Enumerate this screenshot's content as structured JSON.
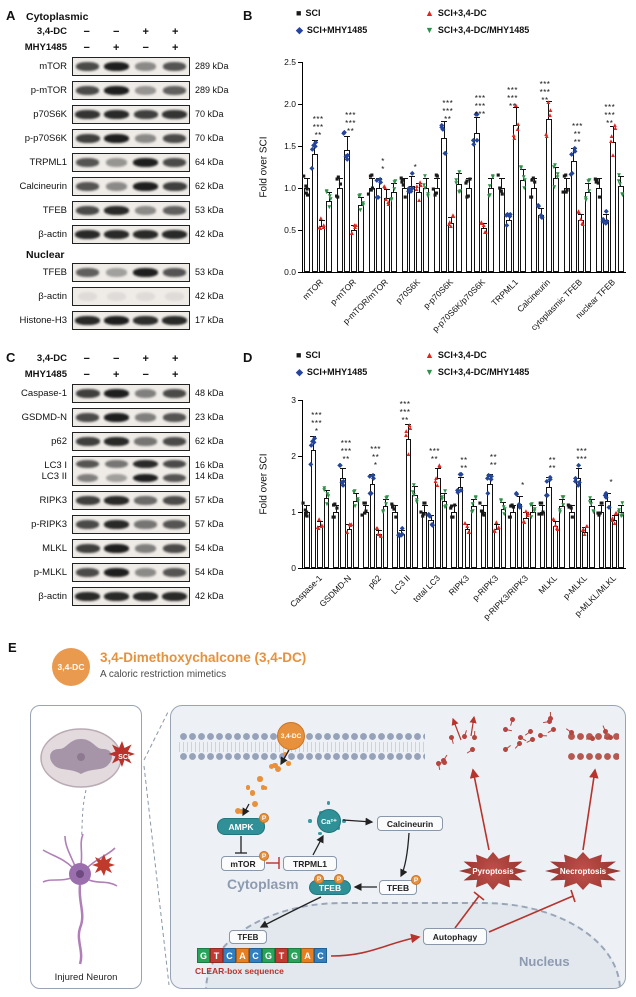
{
  "panelA": {
    "label": "A",
    "compartment_label": "Cytoplasmic",
    "treatments": [
      {
        "name": "3,4-DC",
        "signs": [
          "−",
          "−",
          "+",
          "+"
        ]
      },
      {
        "name": "MHY1485",
        "signs": [
          "−",
          "+",
          "−",
          "+"
        ]
      }
    ],
    "blots": [
      {
        "label": "mTOR",
        "kda": "289 kDa",
        "bands": [
          0.75,
          0.95,
          0.45,
          0.7
        ]
      },
      {
        "label": "p-mTOR",
        "kda": "289 kDa",
        "bands": [
          0.75,
          0.95,
          0.4,
          0.65
        ]
      },
      {
        "label": "p70S6K",
        "kda": "70 kDa",
        "bands": [
          0.85,
          0.9,
          0.8,
          0.85
        ]
      },
      {
        "label": "p-p70S6K",
        "kda": "70 kDa",
        "bands": [
          0.8,
          0.95,
          0.45,
          0.75
        ]
      },
      {
        "label": "TRPML1",
        "kda": "64 kDa",
        "bands": [
          0.7,
          0.4,
          0.95,
          0.75
        ]
      },
      {
        "label": "Calcineurin",
        "kda": "62 kDa",
        "bands": [
          0.7,
          0.45,
          0.95,
          0.8
        ]
      },
      {
        "label": "TFEB",
        "kda": "53 kDa",
        "bands": [
          0.75,
          0.9,
          0.45,
          0.65
        ]
      },
      {
        "label": "β-actin",
        "kda": "42 kDa",
        "bands": [
          0.9,
          0.9,
          0.9,
          0.9
        ]
      }
    ],
    "nuclear_label": "Nuclear",
    "nuclear_blots": [
      {
        "label": "TFEB",
        "kda": "53 kDa",
        "bands": [
          0.65,
          0.35,
          0.95,
          0.7
        ]
      },
      {
        "label": "β-actin",
        "kda": "42 kDa",
        "bands": [
          0.07,
          0.07,
          0.07,
          0.07
        ]
      },
      {
        "label": "Histone-H3",
        "kda": "17 kDa",
        "bands": [
          0.9,
          0.95,
          0.88,
          0.9
        ]
      }
    ]
  },
  "panelB": {
    "label": "B"
  },
  "panelC": {
    "label": "C",
    "treatments": [
      {
        "name": "3,4-DC",
        "signs": [
          "−",
          "−",
          "+",
          "+"
        ]
      },
      {
        "name": "MHY1485",
        "signs": [
          "−",
          "+",
          "−",
          "+"
        ]
      }
    ],
    "blots": [
      {
        "label": "Caspase-1",
        "kda": "48 kDa",
        "bands": [
          0.8,
          0.95,
          0.5,
          0.75
        ]
      },
      {
        "label": "GSDMD-N",
        "kda": "23 kDa",
        "bands": [
          0.75,
          0.95,
          0.5,
          0.7
        ]
      },
      {
        "label": "p62",
        "kda": "62 kDa",
        "bands": [
          0.8,
          0.9,
          0.55,
          0.75
        ]
      },
      {
        "label": "LC3 I",
        "label2": "LC3 II",
        "kda": "16 kDa",
        "kda2": "14 kDa",
        "bands": [
          0.7,
          0.55,
          0.9,
          0.75
        ],
        "bands2": [
          0.5,
          0.35,
          0.95,
          0.7
        ]
      },
      {
        "label": "RIPK3",
        "kda": "57 kDa",
        "bands": [
          0.8,
          0.9,
          0.6,
          0.75
        ]
      },
      {
        "label": "p-RIPK3",
        "kda": "57 kDa",
        "bands": [
          0.75,
          0.9,
          0.55,
          0.7
        ]
      },
      {
        "label": "MLKL",
        "kda": "54 kDa",
        "bands": [
          0.8,
          0.95,
          0.5,
          0.75
        ]
      },
      {
        "label": "p-MLKL",
        "kda": "54 kDa",
        "bands": [
          0.75,
          0.95,
          0.45,
          0.7
        ]
      },
      {
        "label": "β-actin",
        "kda": "42 kDa",
        "bands": [
          0.9,
          0.9,
          0.9,
          0.9
        ]
      }
    ]
  },
  "panelD": {
    "label": "D"
  },
  "chart_data": [
    {
      "id": "B",
      "type": "bar",
      "ylabel": "Fold over SCI",
      "ylim": [
        0,
        2.5
      ],
      "yticks": [
        0,
        0.5,
        1,
        1.5,
        2,
        2.5
      ],
      "ytick_labels": [
        "0.0",
        "0.5",
        "1.0",
        "1.5",
        "2.0",
        "2.5"
      ],
      "grid": false,
      "legend_position": "top",
      "categories": [
        "mTOR",
        "p-mTOR",
        "p-mTOR/mTOR",
        "p70S6K",
        "p-p70S6K",
        "p-p70S6K/p70S6K",
        "TRPML1",
        "Calcineurin",
        "cytoplasmic TFEB",
        "nuclear TFEB"
      ],
      "series": [
        {
          "name": "SCI",
          "color": "#1a1a1a",
          "marker": "■",
          "values": [
            1,
            1,
            1,
            1,
            1,
            1,
            1,
            1,
            1,
            1
          ]
        },
        {
          "name": "SCI+MHY1485",
          "color": "#24459a",
          "marker": "◆",
          "values": [
            1.4,
            1.45,
            1.0,
            1.02,
            1.6,
            1.65,
            0.62,
            0.68,
            1.32,
            0.62
          ]
        },
        {
          "name": "SCI+3,4-DC",
          "color": "#e02420",
          "marker": "▲",
          "values": [
            0.55,
            0.5,
            0.88,
            0.95,
            0.58,
            0.52,
            1.75,
            1.82,
            0.62,
            1.55
          ]
        },
        {
          "name": "SCI+3,4-DC/MHY1485",
          "color": "#2e9148",
          "marker": "▼",
          "values": [
            0.85,
            0.8,
            0.95,
            1.0,
            1.05,
            1.0,
            1.1,
            1.12,
            0.95,
            1.02
          ]
        }
      ],
      "legend": [
        {
          "label": "SCI",
          "marker": "■",
          "color": "#1a1a1a"
        },
        {
          "label": "SCI+3,4-DC",
          "marker": "▲",
          "color": "#e02420"
        },
        {
          "label": "SCI+MHY1485",
          "marker": "◆",
          "color": "#24459a"
        },
        {
          "label": "SCI+3,4-DC/MHY1485",
          "marker": "▼",
          "color": "#2e9148"
        }
      ],
      "significance": [
        [
          "**",
          "***",
          "***"
        ],
        [
          "**",
          "***",
          "***"
        ],
        [
          "*",
          "*"
        ],
        [
          "*"
        ],
        [
          "**",
          "***",
          "***"
        ],
        [
          "***",
          "***",
          "***"
        ],
        [
          "**",
          "***",
          "***"
        ],
        [
          "**",
          "***",
          "***"
        ],
        [
          "**",
          "**",
          "***"
        ],
        [
          "**",
          "***",
          "***"
        ]
      ]
    },
    {
      "id": "D",
      "type": "bar",
      "ylabel": "Fold over SCI",
      "ylim": [
        0,
        3
      ],
      "yticks": [
        0,
        1,
        2,
        3
      ],
      "ytick_labels": [
        "0",
        "1",
        "2",
        "3"
      ],
      "grid": false,
      "legend_position": "top",
      "categories": [
        "Caspase-1",
        "GSDMD-N",
        "p62",
        "LC3 II",
        "total LC3",
        "RIPK3",
        "p-RIPK3",
        "p-RIPK3/RIPK3",
        "MLKL",
        "p-MLKL",
        "p-MLKL/MLKL"
      ],
      "series": [
        {
          "name": "SCI",
          "color": "#1a1a1a",
          "marker": "■",
          "values": [
            1,
            1,
            1,
            1,
            1,
            1,
            1,
            1,
            1,
            1,
            1
          ]
        },
        {
          "name": "SCI+MHY1485",
          "color": "#24459a",
          "marker": "◆",
          "values": [
            2.1,
            1.6,
            1.5,
            0.6,
            0.85,
            1.45,
            1.5,
            1.15,
            1.45,
            1.6,
            1.2
          ]
        },
        {
          "name": "SCI+3,4-DC",
          "color": "#e02420",
          "marker": "▲",
          "values": [
            0.75,
            0.7,
            0.6,
            2.3,
            1.6,
            0.7,
            0.7,
            0.9,
            0.75,
            0.65,
            0.85
          ]
        },
        {
          "name": "SCI+3,4-DC/MHY1485",
          "color": "#2e9148",
          "marker": "▼",
          "values": [
            1.25,
            1.2,
            1.1,
            1.3,
            1.2,
            1.1,
            1.05,
            1.0,
            1.1,
            1.1,
            1.0
          ]
        }
      ],
      "legend": [
        {
          "label": "SCI",
          "marker": "■",
          "color": "#1a1a1a"
        },
        {
          "label": "SCI+3,4-DC",
          "marker": "▲",
          "color": "#e02420"
        },
        {
          "label": "SCI+MHY1485",
          "marker": "◆",
          "color": "#24459a"
        },
        {
          "label": "SCI+3,4-DC/MHY1485",
          "marker": "▼",
          "color": "#2e9148"
        }
      ],
      "significance": [
        [
          "*",
          "***",
          "***"
        ],
        [
          "**",
          "***",
          "***"
        ],
        [
          "*",
          "**",
          "***"
        ],
        [
          "**",
          "***",
          "***"
        ],
        [
          "**",
          "***"
        ],
        [
          "**",
          "**"
        ],
        [
          "**",
          "**"
        ],
        [
          "*"
        ],
        [
          "**",
          "**"
        ],
        [
          "***",
          "***"
        ],
        [
          "*"
        ]
      ]
    }
  ],
  "panelE": {
    "label": "E",
    "badge_text": "3,4-DC",
    "badge_color": "#ea9a4e",
    "title": "3,4-Dimethoxychalcone (3,4-DC)",
    "subtitle": "A caloric restriction mimetics",
    "left_panel": {
      "caption": "Injured Neuron",
      "sci_label": "SCI"
    },
    "diagram": {
      "dc": "3,4-DC",
      "ampk": "AMPK",
      "mtor": "mTOR",
      "trpml1": "TRPML1",
      "ca": "Ca²⁺",
      "calcineurin": "Calcineurin",
      "tfeb": "TFEB",
      "p": "P",
      "cytoplasm": "Cytoplasm",
      "nucleus": "Nucleus",
      "clear_box": "CLEAR-box sequence",
      "autophagy": "Autophagy",
      "pyroptosis": "Pyroptosis",
      "necroptosis": "Necroptosis",
      "dna_sequence": [
        "G",
        "T",
        "C",
        "A",
        "C",
        "G",
        "T",
        "G",
        "A",
        "C"
      ],
      "dna_colors": {
        "A": "#e67e22",
        "T": "#c13a32",
        "G": "#27a35a",
        "C": "#2f7fc1"
      }
    }
  }
}
